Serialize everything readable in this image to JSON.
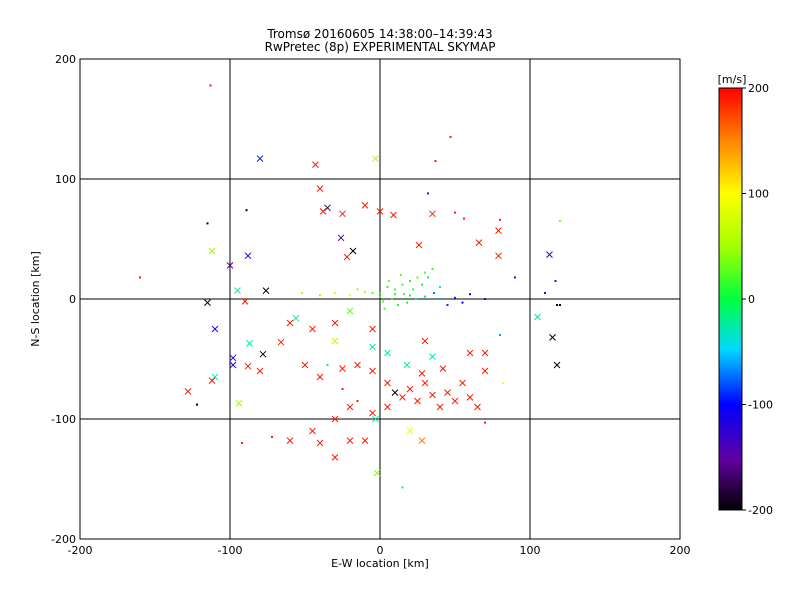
{
  "chart_data": {
    "type": "scatter",
    "title": "Tromsø 20160605 14:38:00–14:39:43",
    "subtitle": "RwPretec (8p) EXPERIMENTAL SKYMAP",
    "xlabel": "E-W location [km]",
    "ylabel": "N-S location [km]",
    "xlim": [
      -200,
      200
    ],
    "ylim": [
      -200,
      200
    ],
    "xticks": [
      -200,
      -100,
      0,
      100,
      200
    ],
    "yticks": [
      -200,
      -100,
      0,
      100,
      200
    ],
    "grid": true,
    "colorbar": {
      "label": "[m/s]",
      "min": -200,
      "max": 200,
      "ticks": [
        200,
        100,
        0,
        -100,
        -200
      ]
    },
    "marker_legend": {
      "cross": "x markers",
      "dot": "small dots"
    },
    "points": [
      {
        "x": -113,
        "y": 178,
        "v": 195,
        "m": "dot"
      },
      {
        "x": -80,
        "y": 117,
        "v": -90,
        "m": "x"
      },
      {
        "x": -43,
        "y": 112,
        "v": 190,
        "m": "x"
      },
      {
        "x": -3,
        "y": 117,
        "v": 60,
        "m": "x"
      },
      {
        "x": 37,
        "y": 115,
        "v": 190,
        "m": "dot"
      },
      {
        "x": 47,
        "y": 135,
        "v": 190,
        "m": "dot"
      },
      {
        "x": -40,
        "y": 92,
        "v": 190,
        "m": "x"
      },
      {
        "x": -35,
        "y": 76,
        "v": -180,
        "m": "x"
      },
      {
        "x": -38,
        "y": 73,
        "v": 190,
        "m": "x"
      },
      {
        "x": -25,
        "y": 71,
        "v": 190,
        "m": "x"
      },
      {
        "x": -10,
        "y": 78,
        "v": 190,
        "m": "x"
      },
      {
        "x": 0,
        "y": 73,
        "v": 190,
        "m": "x"
      },
      {
        "x": 9,
        "y": 70,
        "v": 190,
        "m": "x"
      },
      {
        "x": 35,
        "y": 71,
        "v": 190,
        "m": "x"
      },
      {
        "x": 50,
        "y": 72,
        "v": 190,
        "m": "dot"
      },
      {
        "x": 56,
        "y": 67,
        "v": 190,
        "m": "dot"
      },
      {
        "x": 80,
        "y": 66,
        "v": 190,
        "m": "dot"
      },
      {
        "x": 79,
        "y": 57,
        "v": 190,
        "m": "x"
      },
      {
        "x": 32,
        "y": 88,
        "v": -150,
        "m": "dot"
      },
      {
        "x": -115,
        "y": 63,
        "v": -200,
        "m": "dot"
      },
      {
        "x": -89,
        "y": 74,
        "v": -200,
        "m": "dot"
      },
      {
        "x": -26,
        "y": 51,
        "v": -160,
        "m": "x"
      },
      {
        "x": -112,
        "y": 40,
        "v": 50,
        "m": "x"
      },
      {
        "x": -100,
        "y": 28,
        "v": -150,
        "m": "x"
      },
      {
        "x": -88,
        "y": 36,
        "v": -120,
        "m": "x"
      },
      {
        "x": -18,
        "y": 40,
        "v": -200,
        "m": "x"
      },
      {
        "x": -22,
        "y": 35,
        "v": 190,
        "m": "x"
      },
      {
        "x": 26,
        "y": 45,
        "v": 190,
        "m": "x"
      },
      {
        "x": 66,
        "y": 47,
        "v": 190,
        "m": "x"
      },
      {
        "x": 79,
        "y": 36,
        "v": 190,
        "m": "x"
      },
      {
        "x": 113,
        "y": 37,
        "v": -120,
        "m": "x"
      },
      {
        "x": 120,
        "y": 65,
        "v": 40,
        "m": "dot"
      },
      {
        "x": -160,
        "y": 18,
        "v": 190,
        "m": "dot"
      },
      {
        "x": -95,
        "y": 7,
        "v": -20,
        "m": "x"
      },
      {
        "x": -76,
        "y": 7,
        "v": -200,
        "m": "x"
      },
      {
        "x": -52,
        "y": 5,
        "v": 110,
        "m": "dot"
      },
      {
        "x": -40,
        "y": 3,
        "v": 120,
        "m": "dot"
      },
      {
        "x": -30,
        "y": 5,
        "v": 90,
        "m": "dot"
      },
      {
        "x": -20,
        "y": 3,
        "v": 80,
        "m": "dot"
      },
      {
        "x": -10,
        "y": 6,
        "v": 60,
        "m": "dot"
      },
      {
        "x": 0,
        "y": 2,
        "v": 20,
        "m": "dot"
      },
      {
        "x": 10,
        "y": 4,
        "v": 10,
        "m": "dot"
      },
      {
        "x": 20,
        "y": 3,
        "v": 0,
        "m": "dot"
      },
      {
        "x": 30,
        "y": 2,
        "v": -30,
        "m": "dot"
      },
      {
        "x": 40,
        "y": 0,
        "v": -60,
        "m": "dot"
      },
      {
        "x": 50,
        "y": 1,
        "v": -90,
        "m": "dot"
      },
      {
        "x": 60,
        "y": 4,
        "v": -110,
        "m": "dot"
      },
      {
        "x": 70,
        "y": 0,
        "v": -120,
        "m": "dot"
      },
      {
        "x": 90,
        "y": 18,
        "v": -130,
        "m": "dot"
      },
      {
        "x": 110,
        "y": 5,
        "v": -140,
        "m": "dot"
      },
      {
        "x": 118,
        "y": -5,
        "v": -200,
        "m": "dot"
      },
      {
        "x": 120,
        "y": -5,
        "v": -200,
        "m": "dot"
      },
      {
        "x": 117,
        "y": 15,
        "v": -150,
        "m": "dot"
      },
      {
        "x": -115,
        "y": -3,
        "v": -200,
        "m": "x"
      },
      {
        "x": -110,
        "y": -25,
        "v": -120,
        "m": "x"
      },
      {
        "x": -90,
        "y": -2,
        "v": 190,
        "m": "x"
      },
      {
        "x": -60,
        "y": -20,
        "v": 190,
        "m": "x"
      },
      {
        "x": -45,
        "y": -25,
        "v": 190,
        "m": "x"
      },
      {
        "x": -30,
        "y": -20,
        "v": 190,
        "m": "x"
      },
      {
        "x": -20,
        "y": -10,
        "v": 30,
        "m": "x"
      },
      {
        "x": -30,
        "y": -35,
        "v": 60,
        "m": "x"
      },
      {
        "x": -5,
        "y": -25,
        "v": 190,
        "m": "x"
      },
      {
        "x": 30,
        "y": -35,
        "v": 190,
        "m": "x"
      },
      {
        "x": 105,
        "y": -15,
        "v": -20,
        "m": "x"
      },
      {
        "x": 115,
        "y": -32,
        "v": -200,
        "m": "x"
      },
      {
        "x": 118,
        "y": -55,
        "v": -200,
        "m": "x"
      },
      {
        "x": -98,
        "y": -49,
        "v": -120,
        "m": "x"
      },
      {
        "x": -98,
        "y": -55,
        "v": -130,
        "m": "x"
      },
      {
        "x": -110,
        "y": -65,
        "v": -30,
        "m": "x"
      },
      {
        "x": -112,
        "y": -68,
        "v": 190,
        "m": "x"
      },
      {
        "x": -88,
        "y": -56,
        "v": 190,
        "m": "x"
      },
      {
        "x": -80,
        "y": -60,
        "v": 190,
        "m": "x"
      },
      {
        "x": -87,
        "y": -37,
        "v": -20,
        "m": "x"
      },
      {
        "x": -78,
        "y": -46,
        "v": -200,
        "m": "x"
      },
      {
        "x": -94,
        "y": -87,
        "v": 50,
        "m": "x"
      },
      {
        "x": -128,
        "y": -77,
        "v": 190,
        "m": "x"
      },
      {
        "x": -122,
        "y": -88,
        "v": -200,
        "m": "dot"
      },
      {
        "x": -50,
        "y": -55,
        "v": 190,
        "m": "x"
      },
      {
        "x": -40,
        "y": -65,
        "v": 190,
        "m": "x"
      },
      {
        "x": -25,
        "y": -58,
        "v": 190,
        "m": "x"
      },
      {
        "x": -15,
        "y": -55,
        "v": 190,
        "m": "x"
      },
      {
        "x": -5,
        "y": -60,
        "v": 190,
        "m": "x"
      },
      {
        "x": 5,
        "y": -70,
        "v": 190,
        "m": "x"
      },
      {
        "x": 10,
        "y": -78,
        "v": -200,
        "m": "x"
      },
      {
        "x": 15,
        "y": -82,
        "v": 190,
        "m": "x"
      },
      {
        "x": 20,
        "y": -75,
        "v": 190,
        "m": "x"
      },
      {
        "x": 25,
        "y": -85,
        "v": 190,
        "m": "x"
      },
      {
        "x": 30,
        "y": -70,
        "v": 190,
        "m": "x"
      },
      {
        "x": 35,
        "y": -80,
        "v": 190,
        "m": "x"
      },
      {
        "x": 40,
        "y": -90,
        "v": 190,
        "m": "x"
      },
      {
        "x": 45,
        "y": -78,
        "v": 190,
        "m": "x"
      },
      {
        "x": 50,
        "y": -85,
        "v": 190,
        "m": "x"
      },
      {
        "x": 55,
        "y": -70,
        "v": 190,
        "m": "x"
      },
      {
        "x": 60,
        "y": -82,
        "v": 190,
        "m": "x"
      },
      {
        "x": 65,
        "y": -90,
        "v": 190,
        "m": "x"
      },
      {
        "x": 70,
        "y": -60,
        "v": 190,
        "m": "x"
      },
      {
        "x": 42,
        "y": -58,
        "v": 190,
        "m": "x"
      },
      {
        "x": 28,
        "y": -62,
        "v": 190,
        "m": "x"
      },
      {
        "x": 18,
        "y": -55,
        "v": -20,
        "m": "x"
      },
      {
        "x": 35,
        "y": -48,
        "v": -30,
        "m": "x"
      },
      {
        "x": 5,
        "y": -90,
        "v": 190,
        "m": "x"
      },
      {
        "x": -5,
        "y": -95,
        "v": 190,
        "m": "x"
      },
      {
        "x": -20,
        "y": -90,
        "v": 190,
        "m": "x"
      },
      {
        "x": -30,
        "y": -100,
        "v": 190,
        "m": "x"
      },
      {
        "x": -45,
        "y": -110,
        "v": 190,
        "m": "x"
      },
      {
        "x": -60,
        "y": -118,
        "v": 190,
        "m": "x"
      },
      {
        "x": -40,
        "y": -120,
        "v": 190,
        "m": "x"
      },
      {
        "x": -30,
        "y": -132,
        "v": 190,
        "m": "x"
      },
      {
        "x": -20,
        "y": -118,
        "v": 190,
        "m": "x"
      },
      {
        "x": -10,
        "y": -118,
        "v": 190,
        "m": "x"
      },
      {
        "x": -3,
        "y": -100,
        "v": -20,
        "m": "x"
      },
      {
        "x": -2,
        "y": -145,
        "v": 40,
        "m": "x"
      },
      {
        "x": 20,
        "y": -110,
        "v": 90,
        "m": "x"
      },
      {
        "x": 28,
        "y": -118,
        "v": 150,
        "m": "x"
      },
      {
        "x": 15,
        "y": -157,
        "v": -30,
        "m": "dot"
      },
      {
        "x": -92,
        "y": -120,
        "v": 190,
        "m": "dot"
      },
      {
        "x": -72,
        "y": -115,
        "v": 190,
        "m": "dot"
      },
      {
        "x": 70,
        "y": -103,
        "v": 190,
        "m": "dot"
      },
      {
        "x": 82,
        "y": -70,
        "v": 100,
        "m": "dot"
      },
      {
        "x": -66,
        "y": -36,
        "v": 190,
        "m": "x"
      },
      {
        "x": -56,
        "y": -16,
        "v": -20,
        "m": "x"
      },
      {
        "x": -35,
        "y": -55,
        "v": -30,
        "m": "dot"
      },
      {
        "x": -25,
        "y": -75,
        "v": 190,
        "m": "dot"
      },
      {
        "x": -15,
        "y": -85,
        "v": 190,
        "m": "dot"
      },
      {
        "x": 60,
        "y": -45,
        "v": 190,
        "m": "x"
      },
      {
        "x": 70,
        "y": -45,
        "v": 190,
        "m": "x"
      },
      {
        "x": 80,
        "y": -30,
        "v": -60,
        "m": "dot"
      },
      {
        "x": -5,
        "y": -40,
        "v": -30,
        "m": "x"
      },
      {
        "x": 5,
        "y": -45,
        "v": -20,
        "m": "x"
      }
    ],
    "cluster_green": [
      {
        "x": 0,
        "y": 5,
        "v": 5
      },
      {
        "x": 5,
        "y": 10,
        "v": 10
      },
      {
        "x": 10,
        "y": 8,
        "v": 15
      },
      {
        "x": 15,
        "y": 12,
        "v": 10
      },
      {
        "x": 20,
        "y": 15,
        "v": 5
      },
      {
        "x": 25,
        "y": 18,
        "v": 20
      },
      {
        "x": 30,
        "y": 22,
        "v": 25
      },
      {
        "x": 35,
        "y": 25,
        "v": 10
      },
      {
        "x": 8,
        "y": 0,
        "v": 15
      },
      {
        "x": 12,
        "y": -5,
        "v": 10
      },
      {
        "x": 18,
        "y": -3,
        "v": 0
      },
      {
        "x": 22,
        "y": 8,
        "v": 5
      },
      {
        "x": 28,
        "y": 12,
        "v": -10
      },
      {
        "x": 3,
        "y": -8,
        "v": 20
      },
      {
        "x": -5,
        "y": 5,
        "v": 30
      },
      {
        "x": -15,
        "y": 8,
        "v": 50
      },
      {
        "x": 32,
        "y": 18,
        "v": -20
      },
      {
        "x": 14,
        "y": 20,
        "v": 30
      },
      {
        "x": 6,
        "y": 15,
        "v": 40
      },
      {
        "x": 2,
        "y": -2,
        "v": 25
      },
      {
        "x": 16,
        "y": 4,
        "v": 20
      },
      {
        "x": 24,
        "y": 0,
        "v": -40
      },
      {
        "x": 36,
        "y": 5,
        "v": -70
      },
      {
        "x": 45,
        "y": -5,
        "v": -90
      },
      {
        "x": 55,
        "y": -3,
        "v": -100
      },
      {
        "x": 40,
        "y": 10,
        "v": -50
      }
    ]
  }
}
